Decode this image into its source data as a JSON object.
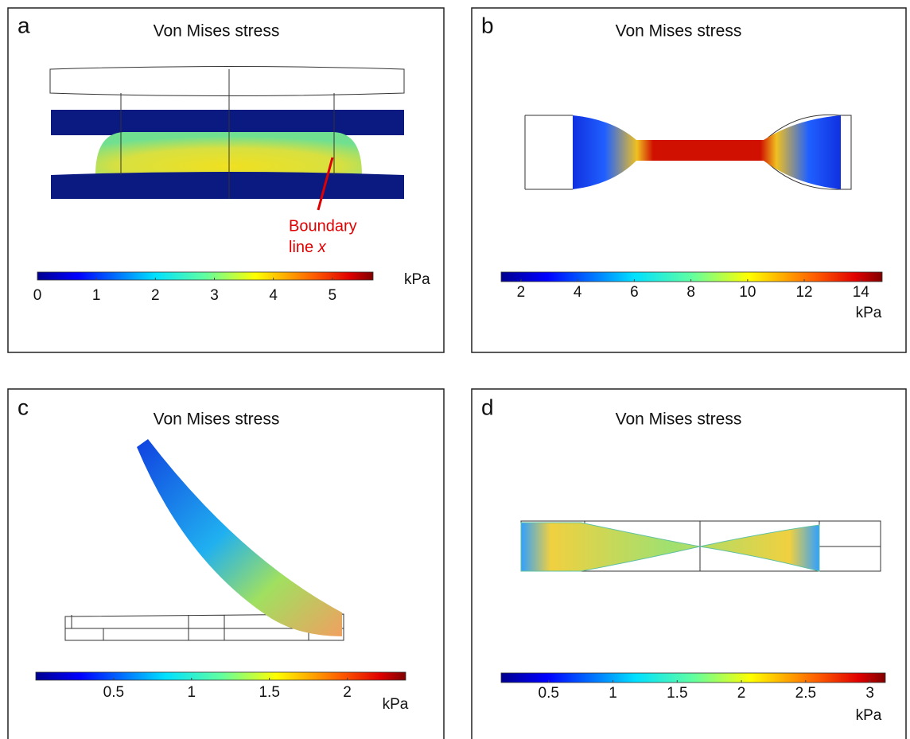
{
  "panels": [
    {
      "label": "a",
      "title": "Von Mises stress",
      "unit": "kPa",
      "colorbar": {
        "range": [
          0,
          5.69
        ],
        "ticks": [
          0,
          1,
          2,
          3,
          4,
          5
        ]
      },
      "annotation": {
        "line1": "Boundary",
        "line2": "line",
        "variable": "x"
      }
    },
    {
      "label": "b",
      "title": "Von Mises stress",
      "unit": "kPa",
      "colorbar": {
        "range": [
          1.3,
          14.75
        ],
        "ticks": [
          2,
          4,
          6,
          8,
          10,
          12,
          14
        ]
      }
    },
    {
      "label": "c",
      "title": "Von Mises stress",
      "unit": "kPa",
      "colorbar": {
        "range": [
          0,
          2.375
        ],
        "ticks": [
          0.5,
          1,
          1.5,
          2
        ]
      }
    },
    {
      "label": "d",
      "title": "Von Mises stress",
      "unit": "kPa",
      "colorbar": {
        "range": [
          0.13,
          3.12
        ],
        "ticks": [
          0.5,
          1,
          1.5,
          2,
          2.5,
          3
        ]
      }
    }
  ]
}
